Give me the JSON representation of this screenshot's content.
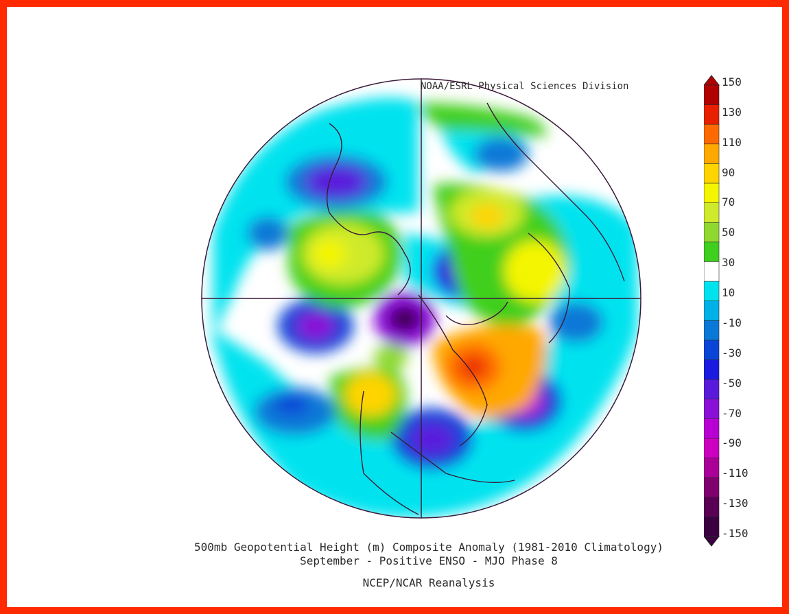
{
  "header": {
    "credit": "NOAA/ESRL Physical Sciences Division"
  },
  "footer": {
    "title_line1": "500mb Geopotential Height (m) Composite Anomaly (1981-2010 Climatology)",
    "title_line2": "September - Positive ENSO - MJO Phase 8",
    "source": "NCEP/NCAR Reanalysis"
  },
  "colorbar": {
    "labels": [
      "150",
      "130",
      "110",
      "90",
      "70",
      "50",
      "30",
      "10",
      "-10",
      "-30",
      "-50",
      "-70",
      "-90",
      "-110",
      "-130",
      "-150"
    ],
    "colors": [
      "#b00000",
      "#e82000",
      "#ff6a00",
      "#ffa800",
      "#ffd400",
      "#f4f500",
      "#cfea2a",
      "#8fd92e",
      "#3fcf1f",
      "#ffffff",
      "#00e3ef",
      "#00b0e8",
      "#0a78d7",
      "#0a45d8",
      "#1a1ae0",
      "#5a1adc",
      "#8a10d8",
      "#b800d4",
      "#cc00c0",
      "#aa0098",
      "#800070",
      "#5a0054",
      "#3a0040"
    ],
    "levels": [
      150,
      130,
      110,
      90,
      70,
      50,
      30,
      10,
      -10,
      -30,
      -50,
      -70,
      -90,
      -110,
      -130,
      -150
    ]
  },
  "map": {
    "background": "#ffffff",
    "border_color": "#3a1a3a"
  }
}
